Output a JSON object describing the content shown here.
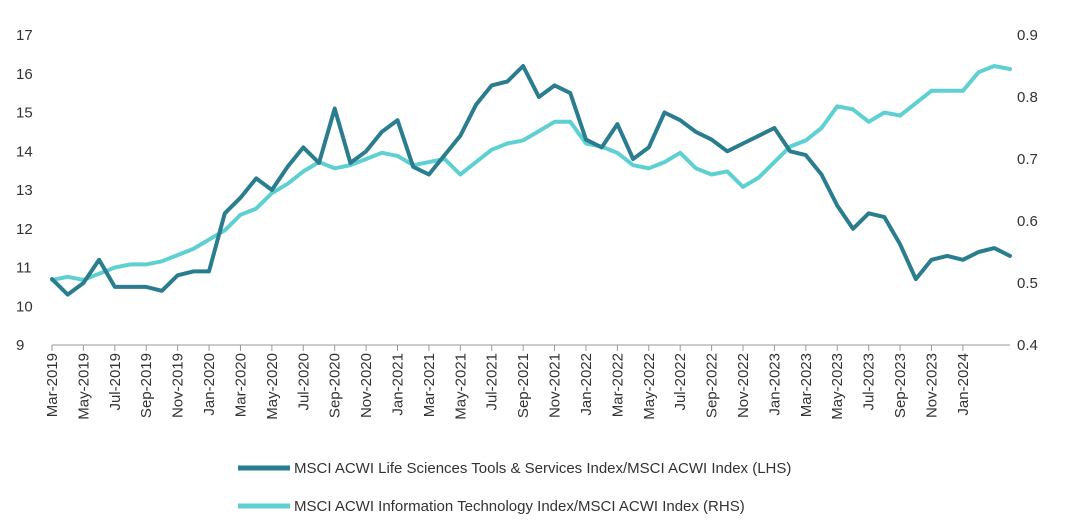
{
  "chart_data": {
    "type": "line",
    "title": "",
    "xlabel": "",
    "ylabel": "",
    "x_tick_labels": [
      "Mar-2019",
      "May-2019",
      "Jul-2019",
      "Sep-2019",
      "Nov-2019",
      "Jan-2020",
      "Mar-2020",
      "May-2020",
      "Jul-2020",
      "Sep-2020",
      "Nov-2020",
      "Jan-2021",
      "Mar-2021",
      "May-2021",
      "Jul-2021",
      "Sep-2021",
      "Nov-2021",
      "Jan-2022",
      "Mar-2022",
      "May-2022",
      "Jul-2022",
      "Sep-2022",
      "Nov-2022",
      "Jan-2023",
      "Mar-2023",
      "May-2023",
      "Jul-2023",
      "Sep-2023",
      "Nov-2023",
      "Jan-2024"
    ],
    "x_range": [
      "Mar-2019",
      "Apr-2024"
    ],
    "y_left": {
      "range": [
        9,
        17
      ],
      "ticks": [
        "9",
        "10",
        "11",
        "12",
        "13",
        "14",
        "15",
        "16",
        "17"
      ]
    },
    "y_right": {
      "range": [
        0.4,
        0.9
      ],
      "ticks": [
        "0.4",
        "0.5",
        "0.6",
        "0.7",
        "0.8",
        "0.9"
      ]
    },
    "grid": false,
    "legend_position": "bottom",
    "series": [
      {
        "name": "MSCI ACWI Life Sciences Tools & Services Index/MSCI ACWI Index (LHS)",
        "axis": "left",
        "color": "#2a7d8e",
        "x": [
          "Mar-2019",
          "Apr-2019",
          "May-2019",
          "Jun-2019",
          "Jul-2019",
          "Aug-2019",
          "Sep-2019",
          "Oct-2019",
          "Nov-2019",
          "Dec-2019",
          "Jan-2020",
          "Feb-2020",
          "Mar-2020",
          "Apr-2020",
          "May-2020",
          "Jun-2020",
          "Jul-2020",
          "Aug-2020",
          "Sep-2020",
          "Oct-2020",
          "Nov-2020",
          "Dec-2020",
          "Jan-2021",
          "Feb-2021",
          "Mar-2021",
          "Apr-2021",
          "May-2021",
          "Jun-2021",
          "Jul-2021",
          "Aug-2021",
          "Sep-2021",
          "Oct-2021",
          "Nov-2021",
          "Dec-2021",
          "Jan-2022",
          "Feb-2022",
          "Mar-2022",
          "Apr-2022",
          "May-2022",
          "Jun-2022",
          "Jul-2022",
          "Aug-2022",
          "Sep-2022",
          "Oct-2022",
          "Nov-2022",
          "Dec-2022",
          "Jan-2023",
          "Feb-2023",
          "Mar-2023",
          "Apr-2023",
          "May-2023",
          "Jun-2023",
          "Jul-2023",
          "Aug-2023",
          "Sep-2023",
          "Oct-2023",
          "Nov-2023",
          "Dec-2023",
          "Jan-2024",
          "Feb-2024",
          "Mar-2024",
          "Apr-2024"
        ],
        "values": [
          10.7,
          10.3,
          10.6,
          11.2,
          10.5,
          10.5,
          10.5,
          10.4,
          10.8,
          10.9,
          10.9,
          12.4,
          12.8,
          13.3,
          13.0,
          13.6,
          14.1,
          13.7,
          15.1,
          13.7,
          14.0,
          14.5,
          14.8,
          13.6,
          13.4,
          13.9,
          14.4,
          15.2,
          15.7,
          15.8,
          16.2,
          15.4,
          15.7,
          15.5,
          14.3,
          14.1,
          14.7,
          13.8,
          14.1,
          15.0,
          14.8,
          14.5,
          14.3,
          14.0,
          14.2,
          14.4,
          14.6,
          14.0,
          13.9,
          13.4,
          12.6,
          12.0,
          12.4,
          12.3,
          11.6,
          10.7,
          11.2,
          11.3,
          11.2,
          11.4,
          11.5,
          11.3
        ]
      },
      {
        "name": "MSCI ACWI Information Technology Index/MSCI ACWI Index (RHS)",
        "axis": "right",
        "color": "#5ed0d2",
        "x": [
          "Mar-2019",
          "Apr-2019",
          "May-2019",
          "Jun-2019",
          "Jul-2019",
          "Aug-2019",
          "Sep-2019",
          "Oct-2019",
          "Nov-2019",
          "Dec-2019",
          "Jan-2020",
          "Feb-2020",
          "Mar-2020",
          "Apr-2020",
          "May-2020",
          "Jun-2020",
          "Jul-2020",
          "Aug-2020",
          "Sep-2020",
          "Oct-2020",
          "Nov-2020",
          "Dec-2020",
          "Jan-2021",
          "Feb-2021",
          "Mar-2021",
          "Apr-2021",
          "May-2021",
          "Jun-2021",
          "Jul-2021",
          "Aug-2021",
          "Sep-2021",
          "Oct-2021",
          "Nov-2021",
          "Dec-2021",
          "Jan-2022",
          "Feb-2022",
          "Mar-2022",
          "Apr-2022",
          "May-2022",
          "Jun-2022",
          "Jul-2022",
          "Aug-2022",
          "Sep-2022",
          "Oct-2022",
          "Nov-2022",
          "Dec-2022",
          "Jan-2023",
          "Feb-2023",
          "Mar-2023",
          "Apr-2023",
          "May-2023",
          "Jun-2023",
          "Jul-2023",
          "Aug-2023",
          "Sep-2023",
          "Oct-2023",
          "Nov-2023",
          "Dec-2023",
          "Jan-2024",
          "Feb-2024",
          "Mar-2024",
          "Apr-2024"
        ],
        "values": [
          0.505,
          0.51,
          0.505,
          0.515,
          0.525,
          0.53,
          0.53,
          0.535,
          0.545,
          0.555,
          0.57,
          0.585,
          0.61,
          0.62,
          0.645,
          0.66,
          0.68,
          0.695,
          0.685,
          0.69,
          0.7,
          0.71,
          0.705,
          0.69,
          0.695,
          0.7,
          0.675,
          0.695,
          0.715,
          0.725,
          0.73,
          0.745,
          0.76,
          0.76,
          0.725,
          0.72,
          0.71,
          0.69,
          0.685,
          0.695,
          0.71,
          0.685,
          0.675,
          0.68,
          0.655,
          0.67,
          0.695,
          0.72,
          0.73,
          0.75,
          0.785,
          0.78,
          0.76,
          0.775,
          0.77,
          0.79,
          0.81,
          0.81,
          0.81,
          0.84,
          0.85,
          0.845
        ]
      }
    ]
  }
}
